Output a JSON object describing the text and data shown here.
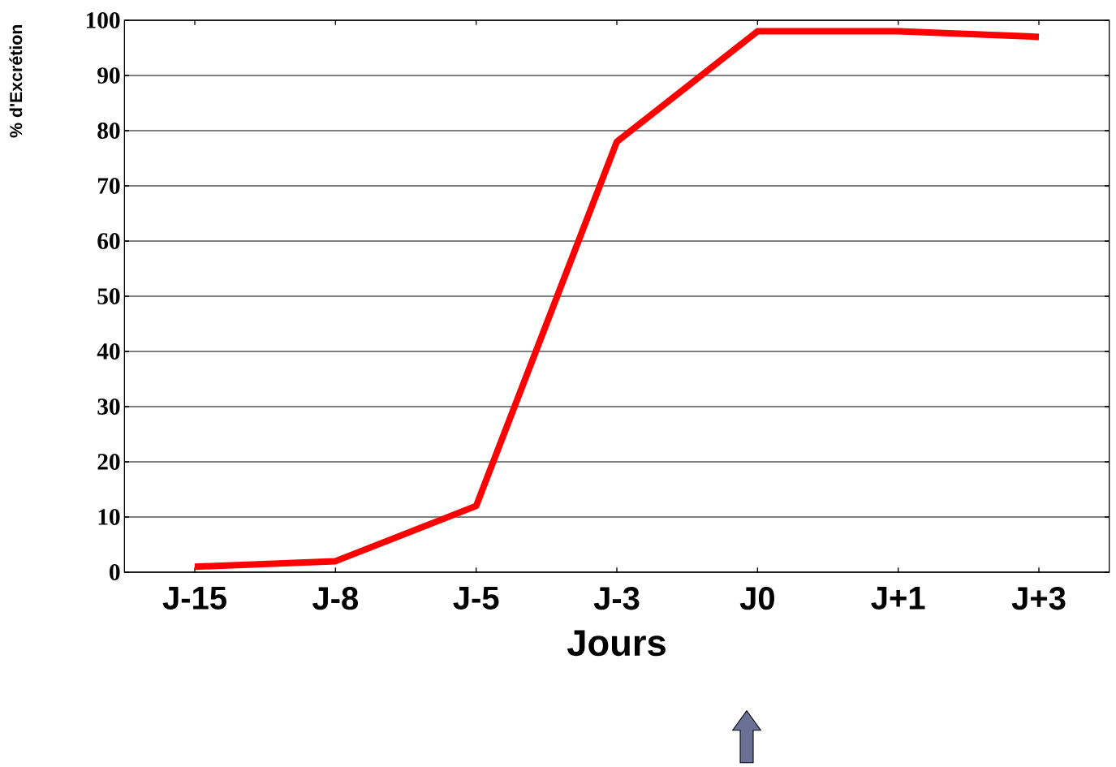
{
  "chart_data": {
    "type": "line",
    "categories": [
      "J-15",
      "J-8",
      "J-5",
      "J-3",
      "J0",
      "J+1",
      "J+3"
    ],
    "values": [
      1,
      2,
      12,
      78,
      98,
      98,
      97
    ],
    "color": "#ff0000",
    "xlabel": "Jours",
    "ylabel": "% d'Excrétion",
    "ylim": [
      0,
      100
    ],
    "yticks": [
      0,
      10,
      20,
      30,
      40,
      50,
      60,
      70,
      80,
      90,
      100
    ],
    "grid": "y"
  }
}
